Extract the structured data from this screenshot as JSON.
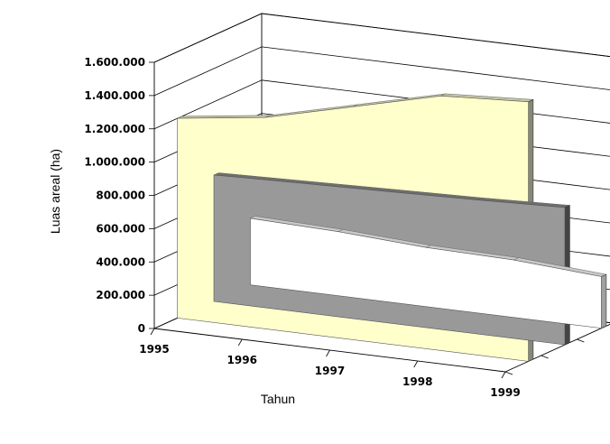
{
  "chart_data": {
    "type": "area",
    "subtype": "3d-area",
    "categories": [
      "1995",
      "1996",
      "1997",
      "1998",
      "1999"
    ],
    "series": [
      {
        "values": [
          400000,
          385000,
          355000,
          345000,
          310000
        ],
        "color": "#ffffff",
        "top_color": "#c8c8c8",
        "end_color": "#a0a0a0"
      },
      {
        "values": [
          760000,
          775000,
          790000,
          805000,
          825000
        ],
        "color": "#999999",
        "top_color": "#6e6e6e",
        "end_color": "#444444"
      },
      {
        "values": [
          1200000,
          1270000,
          1400000,
          1530000,
          1560000
        ],
        "color": "#ffffcc",
        "top_color": "#c4c4a4",
        "end_color": "#888878"
      }
    ],
    "xlabel": "Tahun",
    "ylabel": "Luas areal (ha)",
    "ylim": [
      0,
      1600000
    ],
    "yticks": [
      "0",
      "200.000",
      "400.000",
      "600.000",
      "800.000",
      "1.000.000",
      "1.200.000",
      "1.400.000",
      "1.600.000"
    ],
    "grid": true
  }
}
